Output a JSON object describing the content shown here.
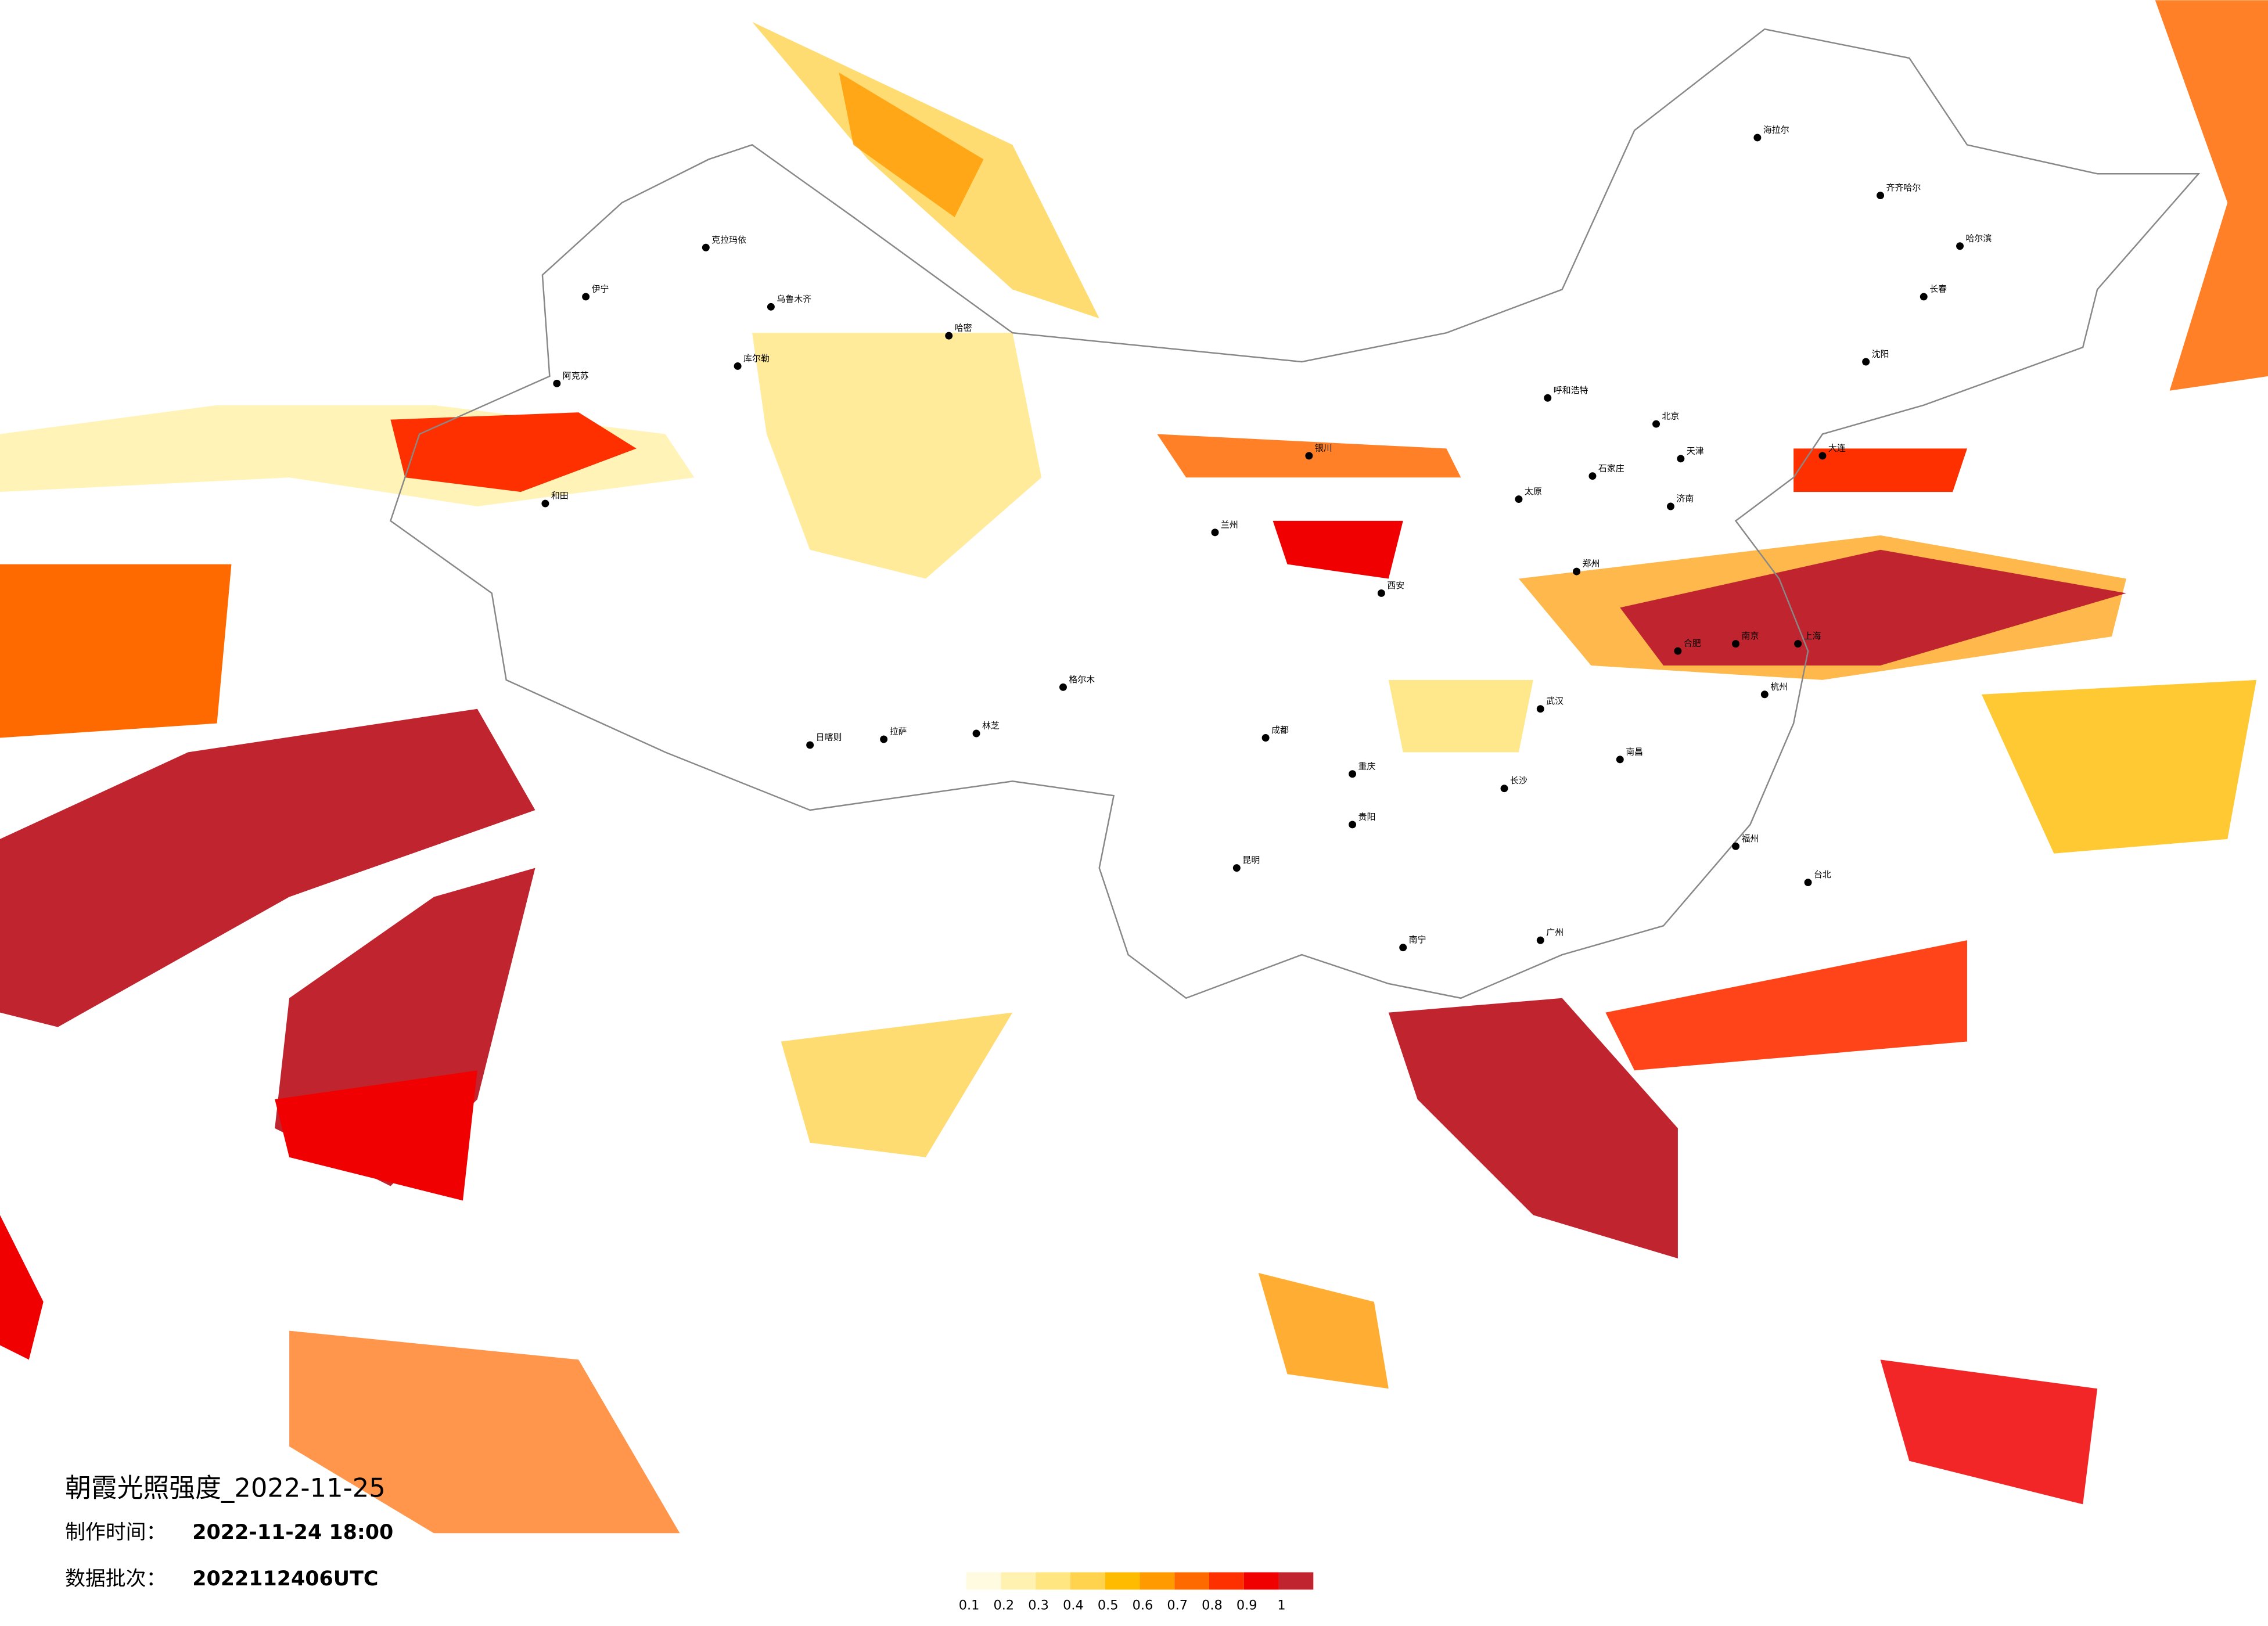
{
  "title": "朝霞光照强度_2022-11-25",
  "made_label": "制作时间：",
  "made_time": "2022-11-24 18:00",
  "batch_label": "数据批次：",
  "batch": "2022112406UTC",
  "legend": {
    "ticks": [
      0.1,
      0.2,
      0.3,
      0.4,
      0.5,
      0.6,
      0.7,
      0.8,
      0.9,
      1
    ],
    "colors": [
      "#fffbe0",
      "#fff2b0",
      "#ffe680",
      "#ffd34d",
      "#ffbb00",
      "#ff9a00",
      "#ff6a00",
      "#ff3000",
      "#f00000",
      "#c0242e"
    ]
  },
  "cities": [
    "克拉玛依",
    "乌鲁木齐",
    "伊宁",
    "库尔勒",
    "哈密",
    "阿克苏",
    "和田",
    "拉萨",
    "日喀则",
    "林芝",
    "格尔木",
    "北京",
    "天津",
    "石家庄",
    "太原",
    "呼和浩特",
    "银川",
    "兰州",
    "西安",
    "郑州",
    "济南",
    "南京",
    "上海",
    "杭州",
    "合肥",
    "武汉",
    "长沙",
    "南昌",
    "福州",
    "广州",
    "南宁",
    "昆明",
    "贵阳",
    "成都",
    "重庆",
    "台北",
    "哈尔滨",
    "长春",
    "沈阳",
    "大连",
    "海拉尔",
    "齐齐哈尔"
  ]
}
